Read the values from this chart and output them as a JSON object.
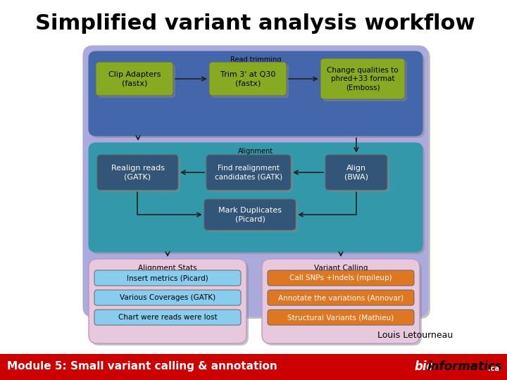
{
  "title": "Simplified variant analysis workflow",
  "title_fontsize": 22,
  "title_fontweight": "bold",
  "bg_color": "#ffffff",
  "footer_bg": "#cc0000",
  "footer_text_left": "Module 5: Small variant calling & annotation",
  "footer_text_right_bio": "bio",
  "footer_text_right_informatics": "informatics",
  "footer_text_right_ca": ".ca",
  "footer_fontsize": 11,
  "author_text": "Louis Letourneau",
  "outer_box_color": "#aaaadd",
  "read_trimming_box_color": "#4466aa",
  "alignment_box_color": "#3399aa",
  "alignment_stats_box_color": "#e8c8dd",
  "variant_calling_box_color": "#e8c8dd",
  "green_box_color": "#88aa22",
  "blue_item_color": "#88ccee",
  "orange_item_color": "#dd7722",
  "dark_box_color": "#335577",
  "arrow_color": "#222222",
  "shadow_color": "#888888"
}
